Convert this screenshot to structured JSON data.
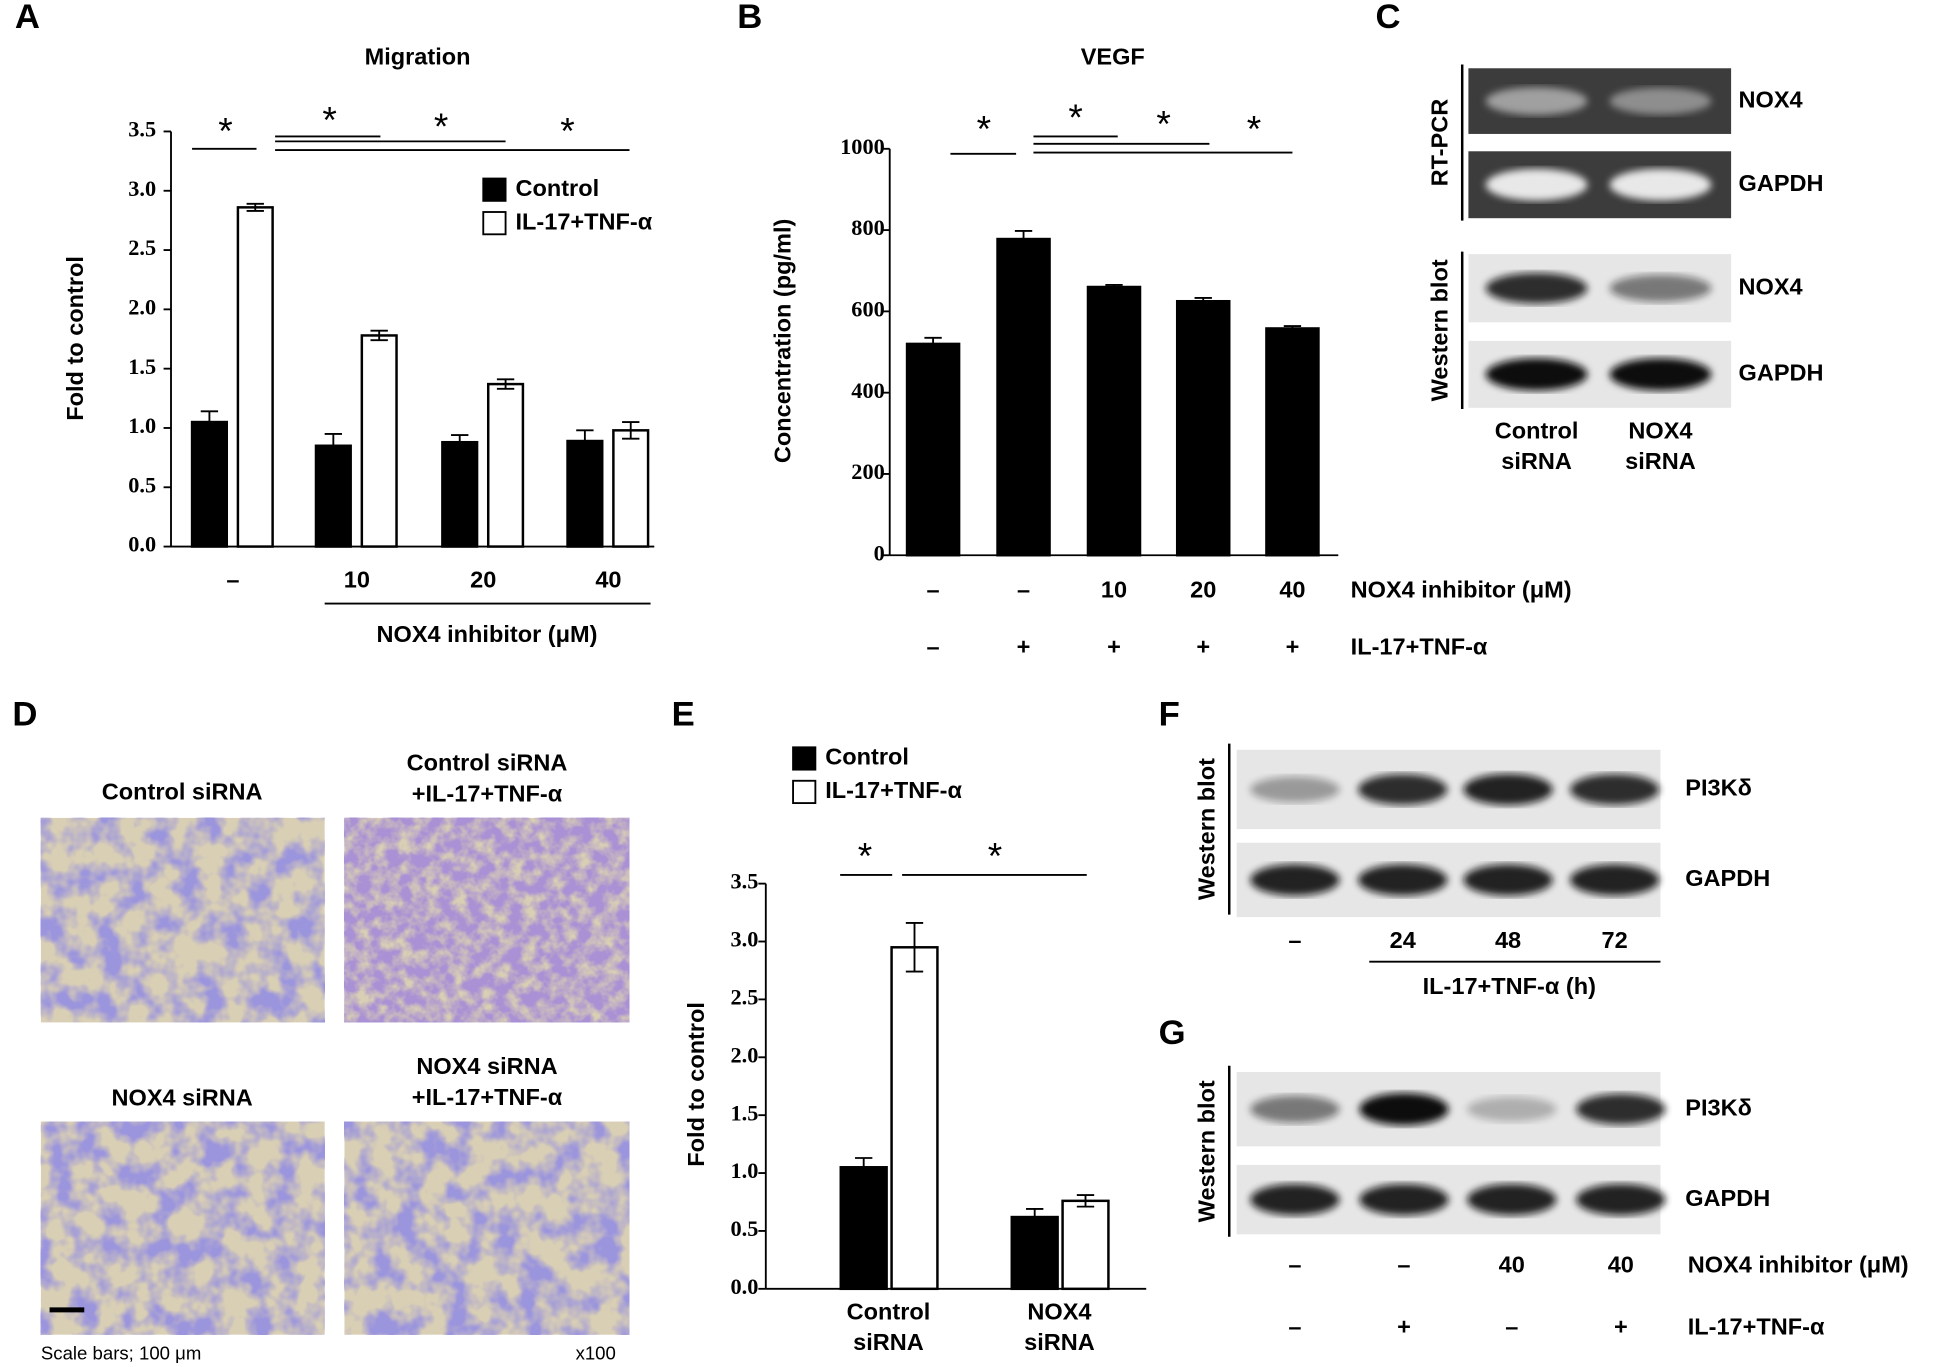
{
  "chart_data": [
    {
      "type": "bar",
      "panel": "A",
      "title": "Migration",
      "y_label": "Fold to control",
      "categories": [
        "–",
        "10",
        "20",
        "40"
      ],
      "category_label": "NOX4 inhibitor (μM)",
      "series": [
        {
          "name": "Control",
          "color": "#000000",
          "values": [
            1.05,
            0.85,
            0.88,
            0.89
          ],
          "errors": [
            0.09,
            0.1,
            0.06,
            0.09
          ]
        },
        {
          "name": "IL-17+TNF-α",
          "color": "#ffffff",
          "values": [
            2.86,
            1.78,
            1.37,
            0.98
          ],
          "errors": [
            0.03,
            0.04,
            0.04,
            0.07
          ]
        }
      ],
      "ylim": [
        0,
        3.5
      ],
      "yticks": [
        {
          "value": 0,
          "label": "0.0"
        },
        0.5,
        {
          "value": 1,
          "label": "1.0"
        },
        1.5,
        {
          "value": 2,
          "label": "2.0"
        },
        2.5,
        {
          "value": 3,
          "label": "3.0"
        },
        3.5
      ],
      "annotations": [
        "*",
        "*",
        "*",
        "*"
      ]
    },
    {
      "type": "bar",
      "panel": "B",
      "title": "VEGF",
      "y_label": "Concentration (pg/ml)",
      "categories": [
        "–",
        "–",
        "10",
        "20",
        "40"
      ],
      "category_label": "NOX4 inhibitor (μM)",
      "categories_2": [
        "–",
        "+",
        "+",
        "+",
        "+"
      ],
      "category_label_2": "IL-17+TNF-α",
      "values": [
        520,
        778,
        660,
        625,
        558
      ],
      "errors": [
        15,
        20,
        5,
        8,
        6
      ],
      "color": "#000000",
      "ylim": [
        0,
        1000
      ],
      "yticks": [
        0,
        200,
        400,
        600,
        800,
        1000
      ],
      "annotations": [
        "*",
        "*",
        "*",
        "*"
      ]
    },
    {
      "type": "bar",
      "panel": "E",
      "y_label": "Fold to control",
      "categories": [
        "Control\nsiRNA",
        "NOX4\nsiRNA"
      ],
      "series": [
        {
          "name": "Control",
          "color": "#000000",
          "values": [
            1.05,
            0.62
          ],
          "errors": [
            0.08,
            0.07
          ]
        },
        {
          "name": "IL-17+TNF-α",
          "color": "#ffffff",
          "values": [
            2.95,
            0.76
          ],
          "errors": [
            0.21,
            0.05
          ]
        }
      ],
      "ylim": [
        0,
        3.5
      ],
      "yticks": [
        {
          "value": 0,
          "label": "0.0"
        },
        0.5,
        {
          "value": 1,
          "label": "1.0"
        },
        1.5,
        {
          "value": 2,
          "label": "2.0"
        },
        2.5,
        {
          "value": 3,
          "label": "3.0"
        },
        3.5
      ],
      "annotations": [
        "*",
        "*"
      ]
    }
  ],
  "blots": {
    "C": {
      "panel": "C",
      "side_labels": [
        "RT-PCR",
        "Western blot"
      ],
      "band_labels": [
        "NOX4",
        "GAPDH",
        "NOX4",
        "GAPDH"
      ],
      "lanes": [
        "Control\nsiRNA",
        "NOX4\nsiRNA"
      ]
    },
    "F": {
      "panel": "F",
      "side_label": "Western blot",
      "band_labels": [
        "PI3Kδ",
        "GAPDH"
      ],
      "lanes": [
        "–",
        "24",
        "48",
        "72"
      ],
      "lane_label": "IL-17+TNF-α (h)"
    },
    "G": {
      "panel": "G",
      "side_label": "Western blot",
      "band_labels": [
        "PI3Kδ",
        "GAPDH"
      ],
      "lanes": [
        "–",
        "–",
        "40",
        "40"
      ],
      "lane_label": "NOX4 inhibitor (μM)",
      "lanes_2": [
        "–",
        "+",
        "–",
        "+"
      ],
      "lane_label_2": "IL-17+TNF-α"
    }
  },
  "micrographs": {
    "panel": "D",
    "titles": [
      "Control siRNA",
      "Control siRNA\n+IL-17+TNF-α",
      "NOX4 siRNA",
      "NOX4 siRNA\n+IL-17+TNF-α"
    ],
    "scale_note": "Scale bars; 100 μm",
    "magnification": "x100"
  }
}
